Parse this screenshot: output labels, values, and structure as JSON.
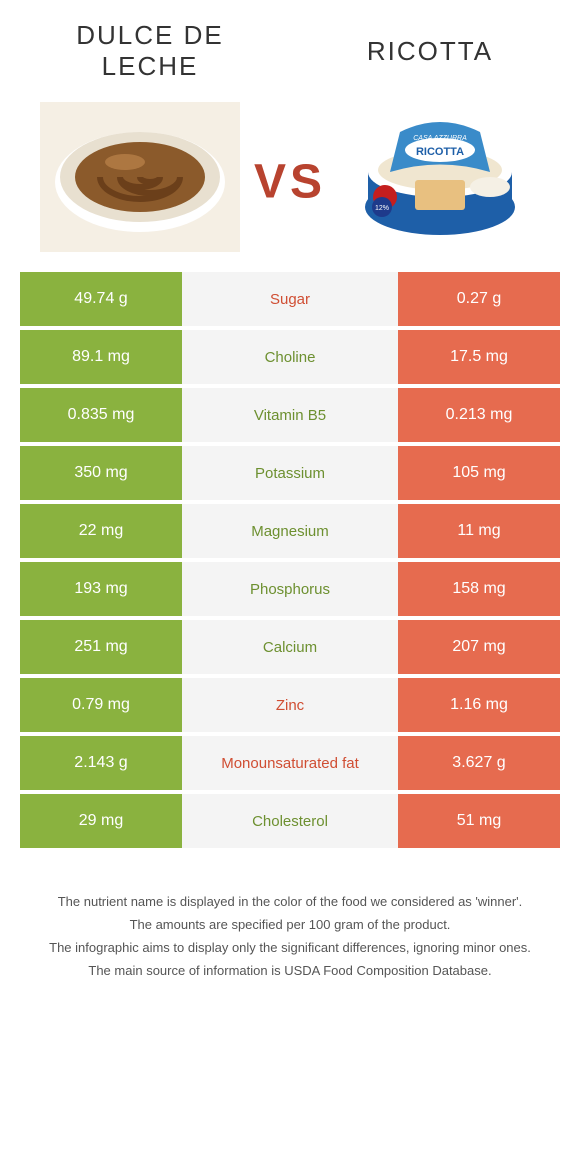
{
  "food_left": {
    "title": "DULCE DE LECHE",
    "color": "#8ab23f"
  },
  "food_right": {
    "title": "RICOTTA",
    "color": "#e66b4f"
  },
  "vs_label": "VS",
  "colors": {
    "left_bg": "#8ab23f",
    "right_bg": "#e66b4f",
    "center_bg": "#f4f4f4",
    "nutrient_left_win": "#6d9030",
    "nutrient_right_win": "#d04e33"
  },
  "rows": [
    {
      "nutrient": "Sugar",
      "left": "49.74 g",
      "right": "0.27 g",
      "winner": "right"
    },
    {
      "nutrient": "Choline",
      "left": "89.1 mg",
      "right": "17.5 mg",
      "winner": "left"
    },
    {
      "nutrient": "Vitamin B5",
      "left": "0.835 mg",
      "right": "0.213 mg",
      "winner": "left"
    },
    {
      "nutrient": "Potassium",
      "left": "350 mg",
      "right": "105 mg",
      "winner": "left"
    },
    {
      "nutrient": "Magnesium",
      "left": "22 mg",
      "right": "11 mg",
      "winner": "left"
    },
    {
      "nutrient": "Phosphorus",
      "left": "193 mg",
      "right": "158 mg",
      "winner": "left"
    },
    {
      "nutrient": "Calcium",
      "left": "251 mg",
      "right": "207 mg",
      "winner": "left"
    },
    {
      "nutrient": "Zinc",
      "left": "0.79 mg",
      "right": "1.16 mg",
      "winner": "right"
    },
    {
      "nutrient": "Monounsaturated fat",
      "left": "2.143 g",
      "right": "3.627 g",
      "winner": "right"
    },
    {
      "nutrient": "Cholesterol",
      "left": "29 mg",
      "right": "51 mg",
      "winner": "left"
    }
  ],
  "footer": [
    "The nutrient name is displayed in the color of the food we considered as 'winner'.",
    "The amounts are specified per 100 gram of the product.",
    "The infographic aims to display only the significant differences, ignoring minor ones.",
    "The main source of information is USDA Food Composition Database."
  ]
}
